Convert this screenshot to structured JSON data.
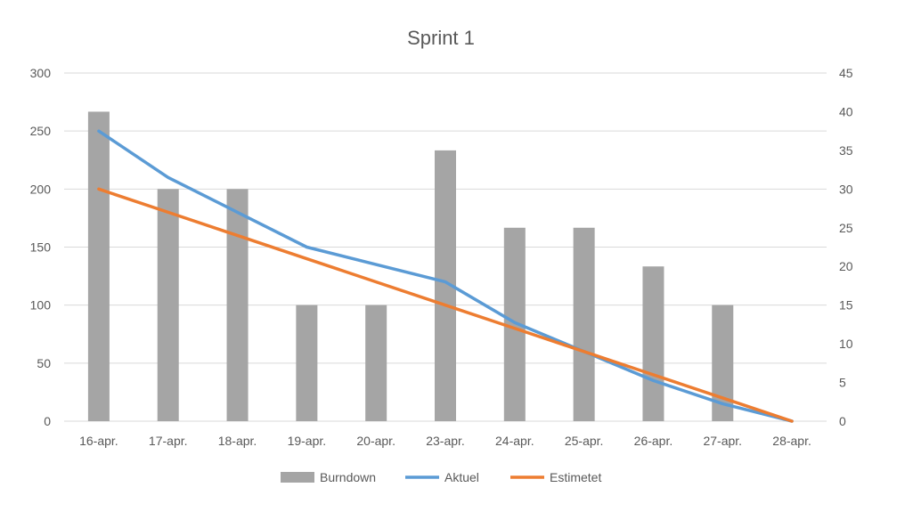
{
  "chart_data": {
    "type": "bar",
    "title": "Sprint 1",
    "categories": [
      "16-apr.",
      "17-apr.",
      "18-apr.",
      "19-apr.",
      "20-apr.",
      "23-apr.",
      "24-apr.",
      "25-apr.",
      "26-apr.",
      "27-apr.",
      "28-apr."
    ],
    "series": [
      {
        "name": "Burndown",
        "kind": "bar",
        "axis": "secondary",
        "color": "#a5a5a5",
        "values": [
          40,
          30,
          30,
          15,
          15,
          35,
          25,
          25,
          20,
          15,
          0
        ]
      },
      {
        "name": "Aktuel",
        "kind": "line",
        "axis": "primary",
        "color": "#5b9bd5",
        "values": [
          250,
          210,
          180,
          150,
          135,
          120,
          85,
          60,
          35,
          15,
          0
        ]
      },
      {
        "name": "Estimetet",
        "kind": "line",
        "axis": "primary",
        "color": "#ed7d31",
        "values": [
          200,
          180,
          160,
          140,
          120,
          100,
          80,
          60,
          40,
          20,
          0
        ]
      }
    ],
    "ylim": [
      0,
      300
    ],
    "yticks": [
      0,
      50,
      100,
      150,
      200,
      250,
      300
    ],
    "y2lim": [
      0,
      45
    ],
    "y2ticks": [
      0,
      5,
      10,
      15,
      20,
      25,
      30,
      35,
      40,
      45
    ],
    "grid": true,
    "legend_position": "bottom"
  }
}
